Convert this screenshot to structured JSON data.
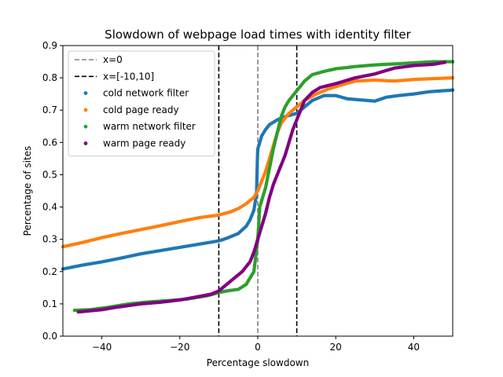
{
  "chart_data": {
    "type": "scatter",
    "title": "Slowdown of webpage load times with identity filter",
    "xlabel": "Percentage slowdown",
    "ylabel": "Percentage of sites",
    "xlim": [
      -50,
      50
    ],
    "ylim": [
      0,
      0.9
    ],
    "xticks": [
      -40,
      -20,
      0,
      20,
      40
    ],
    "xtick_labels": [
      "−40",
      "−20",
      "0",
      "20",
      "40"
    ],
    "yticks": [
      0.0,
      0.1,
      0.2,
      0.3,
      0.4,
      0.5,
      0.6,
      0.7,
      0.8,
      0.9
    ],
    "ytick_labels": [
      "0.0",
      "0.1",
      "0.2",
      "0.3",
      "0.4",
      "0.5",
      "0.6",
      "0.7",
      "0.8",
      "0.9"
    ],
    "grid": false,
    "legend_position": "top-left",
    "reference_lines": [
      {
        "name": "x=0",
        "x": [
          0
        ],
        "color": "#808080",
        "style": "dashed"
      },
      {
        "name": "x=[-10,10]",
        "x": [
          -10,
          10
        ],
        "color": "#000000",
        "style": "dashed"
      }
    ],
    "series": [
      {
        "name": "cold network filter",
        "color": "#1f77b4",
        "points": [
          [
            -50,
            0.208
          ],
          [
            -45,
            0.22
          ],
          [
            -40,
            0.23
          ],
          [
            -35,
            0.242
          ],
          [
            -30,
            0.255
          ],
          [
            -25,
            0.265
          ],
          [
            -20,
            0.275
          ],
          [
            -15,
            0.285
          ],
          [
            -10,
            0.295
          ],
          [
            -8,
            0.303
          ],
          [
            -5,
            0.318
          ],
          [
            -3,
            0.34
          ],
          [
            -2,
            0.36
          ],
          [
            -1,
            0.39
          ],
          [
            -0.6,
            0.42
          ],
          [
            -0.3,
            0.45
          ],
          [
            -0.2,
            0.5
          ],
          [
            -0.1,
            0.55
          ],
          [
            0,
            0.58
          ],
          [
            1,
            0.62
          ],
          [
            2,
            0.64
          ],
          [
            3,
            0.655
          ],
          [
            5,
            0.67
          ],
          [
            7,
            0.68
          ],
          [
            10,
            0.69
          ],
          [
            12,
            0.71
          ],
          [
            14,
            0.73
          ],
          [
            17,
            0.745
          ],
          [
            20,
            0.745
          ],
          [
            23,
            0.735
          ],
          [
            30,
            0.728
          ],
          [
            33,
            0.74
          ],
          [
            36,
            0.745
          ],
          [
            40,
            0.75
          ],
          [
            44,
            0.757
          ],
          [
            50,
            0.762
          ]
        ]
      },
      {
        "name": "cold page ready",
        "color": "#ff7f0e",
        "points": [
          [
            -50,
            0.277
          ],
          [
            -45,
            0.29
          ],
          [
            -40,
            0.305
          ],
          [
            -35,
            0.318
          ],
          [
            -30,
            0.33
          ],
          [
            -25,
            0.342
          ],
          [
            -20,
            0.355
          ],
          [
            -15,
            0.367
          ],
          [
            -10,
            0.375
          ],
          [
            -7,
            0.385
          ],
          [
            -5,
            0.395
          ],
          [
            -3,
            0.41
          ],
          [
            -1,
            0.43
          ],
          [
            0,
            0.45
          ],
          [
            1,
            0.48
          ],
          [
            2,
            0.51
          ],
          [
            3,
            0.55
          ],
          [
            4,
            0.59
          ],
          [
            5,
            0.63
          ],
          [
            6,
            0.66
          ],
          [
            8,
            0.69
          ],
          [
            10,
            0.71
          ],
          [
            12,
            0.73
          ],
          [
            15,
            0.75
          ],
          [
            18,
            0.765
          ],
          [
            22,
            0.78
          ],
          [
            25,
            0.79
          ],
          [
            30,
            0.793
          ],
          [
            35,
            0.79
          ],
          [
            40,
            0.795
          ],
          [
            44,
            0.797
          ],
          [
            50,
            0.8
          ]
        ]
      },
      {
        "name": "warm network filter",
        "color": "#2ca02c",
        "points": [
          [
            -47,
            0.08
          ],
          [
            -43,
            0.082
          ],
          [
            -38,
            0.09
          ],
          [
            -33,
            0.1
          ],
          [
            -28,
            0.106
          ],
          [
            -23,
            0.11
          ],
          [
            -18,
            0.115
          ],
          [
            -13,
            0.125
          ],
          [
            -10,
            0.135
          ],
          [
            -8,
            0.14
          ],
          [
            -5,
            0.145
          ],
          [
            -3,
            0.16
          ],
          [
            -1,
            0.2
          ],
          [
            0,
            0.3
          ],
          [
            0.5,
            0.4
          ],
          [
            1,
            0.42
          ],
          [
            2,
            0.46
          ],
          [
            3,
            0.52
          ],
          [
            4,
            0.58
          ],
          [
            5,
            0.63
          ],
          [
            6,
            0.68
          ],
          [
            7,
            0.71
          ],
          [
            8,
            0.73
          ],
          [
            10,
            0.76
          ],
          [
            12,
            0.79
          ],
          [
            14,
            0.81
          ],
          [
            17,
            0.82
          ],
          [
            20,
            0.828
          ],
          [
            25,
            0.835
          ],
          [
            30,
            0.84
          ],
          [
            38,
            0.845
          ],
          [
            45,
            0.85
          ],
          [
            50,
            0.85
          ]
        ]
      },
      {
        "name": "warm page ready",
        "color": "#800080",
        "points": [
          [
            -46,
            0.075
          ],
          [
            -40,
            0.082
          ],
          [
            -36,
            0.09
          ],
          [
            -30,
            0.1
          ],
          [
            -25,
            0.105
          ],
          [
            -20,
            0.112
          ],
          [
            -15,
            0.123
          ],
          [
            -12,
            0.13
          ],
          [
            -10,
            0.14
          ],
          [
            -8,
            0.16
          ],
          [
            -6,
            0.18
          ],
          [
            -4,
            0.2
          ],
          [
            -2,
            0.23
          ],
          [
            -1,
            0.26
          ],
          [
            0,
            0.3
          ],
          [
            1,
            0.34
          ],
          [
            2,
            0.38
          ],
          [
            3,
            0.43
          ],
          [
            4,
            0.47
          ],
          [
            5,
            0.5
          ],
          [
            6,
            0.53
          ],
          [
            7,
            0.56
          ],
          [
            8,
            0.6
          ],
          [
            9,
            0.64
          ],
          [
            10,
            0.67
          ],
          [
            11,
            0.7
          ],
          [
            12,
            0.73
          ],
          [
            14,
            0.755
          ],
          [
            16,
            0.77
          ],
          [
            20,
            0.782
          ],
          [
            25,
            0.8
          ],
          [
            30,
            0.812
          ],
          [
            35,
            0.83
          ],
          [
            40,
            0.838
          ],
          [
            45,
            0.842
          ],
          [
            48,
            0.848
          ]
        ]
      }
    ]
  }
}
